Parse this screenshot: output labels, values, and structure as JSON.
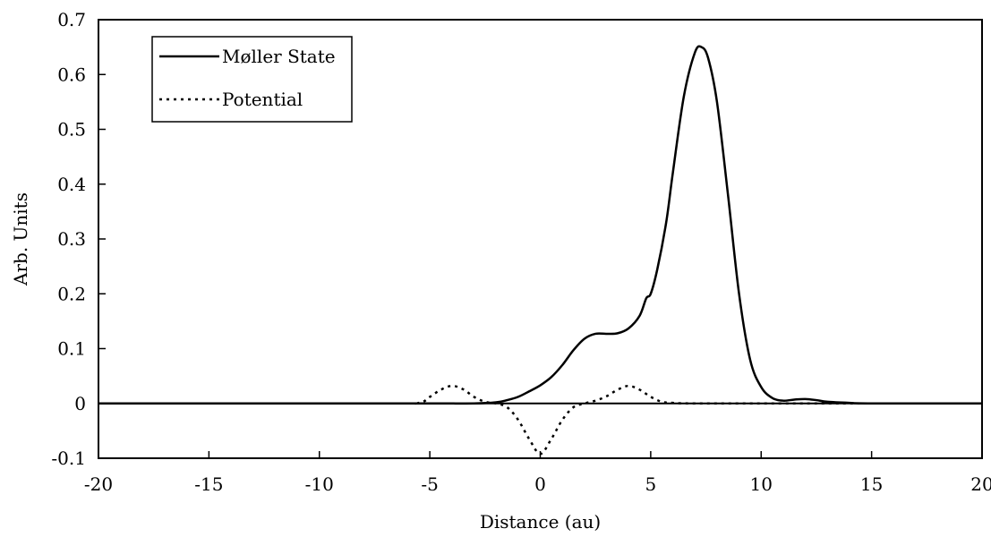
{
  "chart_data": {
    "type": "line",
    "title": "",
    "xlabel": "Distance (au)",
    "ylabel": "Arb. Units",
    "xlim": [
      -20,
      20
    ],
    "ylim": [
      -0.1,
      0.7
    ],
    "xticks": [
      -20,
      -15,
      -10,
      -5,
      0,
      5,
      10,
      15,
      20
    ],
    "yticks": [
      -0.1,
      0,
      0.1,
      0.2,
      0.3,
      0.4,
      0.5,
      0.6,
      0.7
    ],
    "xtick_labels": [
      "-20",
      "-15",
      "-10",
      "-5",
      "0",
      "5",
      "10",
      "15",
      "20"
    ],
    "ytick_labels": [
      "-0.1",
      "0",
      "0.1",
      "0.2",
      "0.3",
      "0.4",
      "0.5",
      "0.6",
      "0.7"
    ],
    "grid": false,
    "legend_position": "top-left",
    "series": [
      {
        "name": "Møller State",
        "style": "solid",
        "color": "#000000",
        "x": [
          -20,
          -10,
          -5,
          -3,
          -2,
          -1.5,
          -1,
          -0.5,
          0,
          0.5,
          1,
          1.5,
          2,
          2.5,
          3,
          3.5,
          4,
          4.5,
          4.8,
          5,
          5.3,
          5.7,
          6,
          6.5,
          7,
          7.3,
          7.6,
          8,
          8.5,
          9,
          9.5,
          10,
          10.5,
          11,
          11.5,
          12,
          12.5,
          13,
          14,
          15,
          20
        ],
        "y": [
          0,
          0,
          0,
          0,
          0.002,
          0.006,
          0.012,
          0.022,
          0.033,
          0.048,
          0.07,
          0.097,
          0.118,
          0.127,
          0.127,
          0.128,
          0.137,
          0.16,
          0.192,
          0.2,
          0.245,
          0.33,
          0.42,
          0.56,
          0.64,
          0.65,
          0.63,
          0.55,
          0.38,
          0.2,
          0.08,
          0.03,
          0.01,
          0.005,
          0.007,
          0.008,
          0.006,
          0.003,
          0.001,
          0,
          0
        ]
      },
      {
        "name": "Potential",
        "style": "dotted",
        "color": "#000000",
        "x": [
          -20,
          -7,
          -5.5,
          -5,
          -4.5,
          -4,
          -3.5,
          -3,
          -2.5,
          -2,
          -1.5,
          -1,
          -0.5,
          0,
          0.5,
          1,
          1.5,
          2,
          2.5,
          3,
          3.5,
          4,
          4.5,
          5,
          5.5,
          6,
          7,
          12,
          20
        ],
        "y": [
          0,
          0,
          0.001,
          0.012,
          0.025,
          0.032,
          0.026,
          0.012,
          0.003,
          0,
          -0.007,
          -0.03,
          -0.065,
          -0.092,
          -0.065,
          -0.03,
          -0.007,
          0,
          0.005,
          0.013,
          0.025,
          0.032,
          0.025,
          0.012,
          0.003,
          0.001,
          0,
          0,
          0
        ]
      }
    ]
  }
}
